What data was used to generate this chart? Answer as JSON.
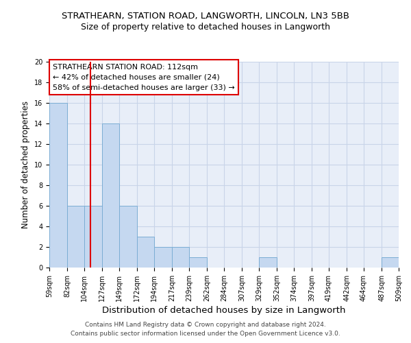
{
  "title1": "STRATHEARN, STATION ROAD, LANGWORTH, LINCOLN, LN3 5BB",
  "title2": "Size of property relative to detached houses in Langworth",
  "xlabel": "Distribution of detached houses by size in Langworth",
  "ylabel": "Number of detached properties",
  "bin_labels": [
    "59sqm",
    "82sqm",
    "104sqm",
    "127sqm",
    "149sqm",
    "172sqm",
    "194sqm",
    "217sqm",
    "239sqm",
    "262sqm",
    "284sqm",
    "307sqm",
    "329sqm",
    "352sqm",
    "374sqm",
    "397sqm",
    "419sqm",
    "442sqm",
    "464sqm",
    "487sqm",
    "509sqm"
  ],
  "bin_edges": [
    59,
    82,
    104,
    127,
    149,
    172,
    194,
    217,
    239,
    262,
    284,
    307,
    329,
    352,
    374,
    397,
    419,
    442,
    464,
    487,
    509
  ],
  "bar_heights": [
    16,
    6,
    6,
    14,
    6,
    3,
    2,
    2,
    1,
    0,
    0,
    0,
    1,
    0,
    0,
    0,
    0,
    0,
    0,
    1,
    0
  ],
  "bar_color": "#c5d8f0",
  "bar_edge_color": "#7badd4",
  "grid_color": "#c8d4e8",
  "background_color": "#e8eef8",
  "vline_x": 112,
  "vline_color": "#dd0000",
  "annotation_text": "STRATHEARN STATION ROAD: 112sqm\n← 42% of detached houses are smaller (24)\n58% of semi-detached houses are larger (33) →",
  "annotation_box_color": "#ffffff",
  "annotation_box_edge_color": "#dd0000",
  "ylim": [
    0,
    20
  ],
  "yticks": [
    0,
    2,
    4,
    6,
    8,
    10,
    12,
    14,
    16,
    18,
    20
  ],
  "footnote1": "Contains HM Land Registry data © Crown copyright and database right 2024.",
  "footnote2": "Contains public sector information licensed under the Open Government Licence v3.0.",
  "title1_fontsize": 9.5,
  "title2_fontsize": 9,
  "xlabel_fontsize": 9.5,
  "ylabel_fontsize": 8.5,
  "tick_fontsize": 7,
  "annotation_fontsize": 8,
  "footnote_fontsize": 6.5
}
